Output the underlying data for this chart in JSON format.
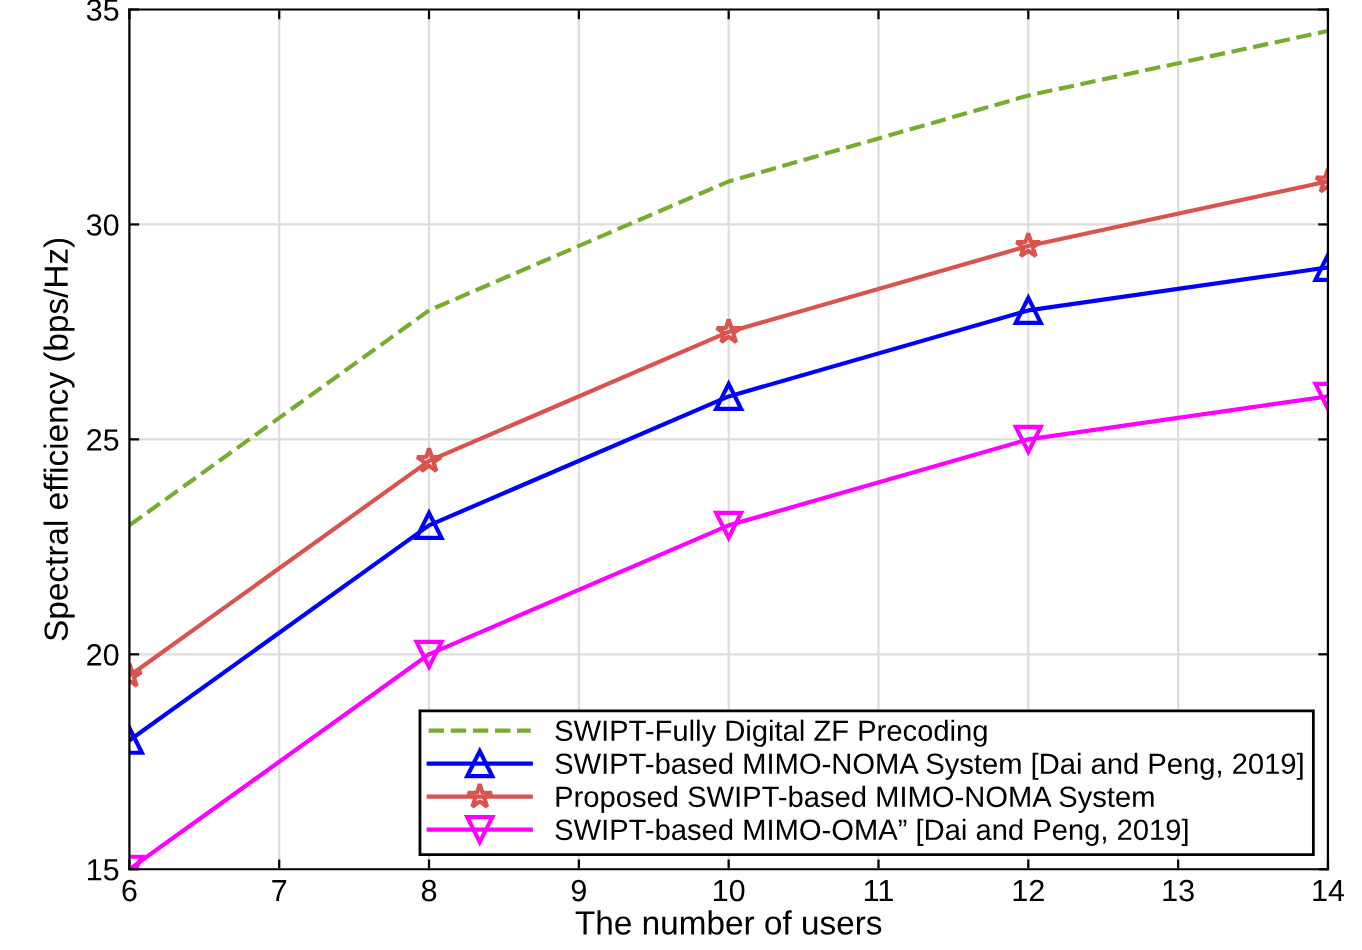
{
  "chart_data": {
    "type": "line",
    "xlabel": "The number of users",
    "ylabel": "Spectral efficiency (bps/Hz)",
    "x": [
      6,
      8,
      10,
      12,
      14
    ],
    "series": [
      {
        "name": "SWIPT-Fully Digital ZF Precoding",
        "color": "#77ac30",
        "values": [
          23,
          28,
          31,
          33,
          34.5
        ],
        "line_style": "dashed",
        "marker": "none"
      },
      {
        "name": "SWIPT-based MIMO-NOMA System [Dai and Peng, 2019]",
        "color": "#0000ff",
        "values": [
          18,
          23,
          26,
          28,
          29
        ],
        "line_style": "solid",
        "marker": "triangle"
      },
      {
        "name": "Proposed SWIPT-based MIMO-NOMA System",
        "color": "#d9534f",
        "values": [
          19.5,
          24.5,
          27.5,
          29.5,
          31
        ],
        "line_style": "solid",
        "marker": "star"
      },
      {
        "name": "SWIPT-based MIMO-OMA” [Dai and Peng, 2019]",
        "color": "#ff00ff",
        "values": [
          15,
          20,
          23,
          25,
          26
        ],
        "line_style": "solid",
        "marker": "triangle_down"
      }
    ],
    "xlim": [
      6,
      14
    ],
    "xticks": [
      6,
      7,
      8,
      9,
      10,
      11,
      12,
      13,
      14
    ],
    "ylim": [
      15,
      35
    ],
    "yticks": [
      15,
      20,
      25,
      30,
      35
    ],
    "grid": true,
    "legend": "bottom right"
  }
}
